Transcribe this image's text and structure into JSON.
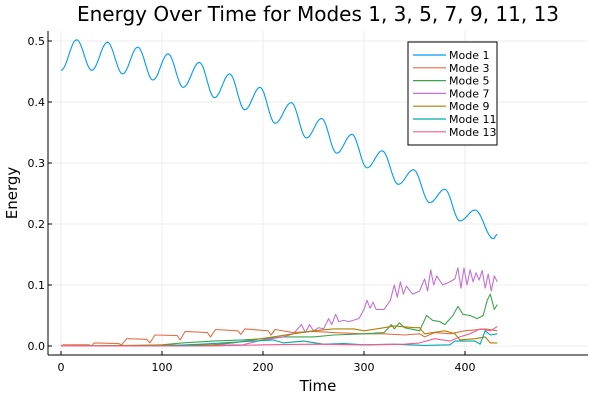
{
  "chart_data": {
    "type": "line",
    "title": "Energy Over Time for Modes 1, 3, 5, 7, 9, 11, 13",
    "xlabel": "Time",
    "ylabel": "Energy",
    "xlim": [
      -12,
      447
    ],
    "ylim": [
      -0.015,
      0.516
    ],
    "xticks": [
      0,
      100,
      200,
      300,
      400
    ],
    "xtick_labels": [
      "0",
      "100",
      "200",
      "300",
      "400"
    ],
    "yticks": [
      0.0,
      0.1,
      0.2,
      0.3,
      0.4,
      0.5
    ],
    "ytick_labels": [
      "0.0",
      "0.1",
      "0.2",
      "0.3",
      "0.4",
      "0.5"
    ],
    "grid": true,
    "legend_position": "top-right",
    "series": [
      {
        "name": "Mode 1",
        "color": "#009af9",
        "interpolation": "smooth-extrema",
        "x": [
          0,
          15.5,
          30.5,
          46,
          61,
          76,
          91,
          106,
          121,
          137,
          152,
          167,
          182,
          197,
          212,
          228,
          243,
          258,
          273,
          288,
          303,
          318,
          334,
          349,
          365,
          380,
          395,
          410,
          428,
          432
        ],
        "y": [
          0.452,
          0.502,
          0.452,
          0.498,
          0.446,
          0.49,
          0.436,
          0.479,
          0.424,
          0.465,
          0.407,
          0.446,
          0.387,
          0.424,
          0.365,
          0.399,
          0.341,
          0.373,
          0.316,
          0.347,
          0.292,
          0.32,
          0.265,
          0.289,
          0.235,
          0.257,
          0.205,
          0.223,
          0.176,
          0.183
        ]
      },
      {
        "name": "Mode 3",
        "color": "#e26f46",
        "x": [
          0,
          2,
          28,
          30,
          33,
          57,
          60,
          65,
          85,
          88,
          93,
          115,
          118,
          123,
          145,
          148,
          153,
          175,
          178,
          182,
          205,
          208,
          212,
          230,
          250,
          270,
          300,
          320,
          340,
          355,
          360,
          370,
          385,
          400,
          420,
          432
        ],
        "y": [
          0.0,
          0.002,
          0.002,
          0.0,
          0.005,
          0.004,
          0.002,
          0.012,
          0.011,
          0.005,
          0.018,
          0.017,
          0.01,
          0.024,
          0.022,
          0.015,
          0.027,
          0.025,
          0.019,
          0.028,
          0.025,
          0.018,
          0.027,
          0.022,
          0.024,
          0.022,
          0.02,
          0.02,
          0.018,
          0.02,
          0.015,
          0.022,
          0.02,
          0.025,
          0.028,
          0.025
        ]
      },
      {
        "name": "Mode 5",
        "color": "#3da44d",
        "x": [
          0,
          60,
          100,
          120,
          150,
          180,
          200,
          220,
          250,
          270,
          300,
          320,
          327,
          330,
          335,
          340,
          355,
          362,
          368,
          375,
          380,
          388,
          393,
          398,
          405,
          412,
          418,
          422,
          425,
          429,
          432
        ],
        "y": [
          0.0,
          0.0,
          0.002,
          0.005,
          0.008,
          0.01,
          0.012,
          0.015,
          0.015,
          0.018,
          0.02,
          0.022,
          0.035,
          0.028,
          0.038,
          0.03,
          0.025,
          0.05,
          0.042,
          0.04,
          0.035,
          0.05,
          0.065,
          0.052,
          0.05,
          0.045,
          0.05,
          0.075,
          0.085,
          0.06,
          0.068
        ]
      },
      {
        "name": "Mode 7",
        "color": "#c271d2",
        "x": [
          0,
          180,
          200,
          220,
          230,
          238,
          242,
          246,
          250,
          255,
          260,
          265,
          268,
          272,
          275,
          280,
          285,
          295,
          300,
          303,
          306,
          309,
          312,
          320,
          326,
          330,
          333,
          336,
          339,
          342,
          348,
          355,
          360,
          363,
          366,
          369,
          372,
          378,
          385,
          390,
          393,
          396,
          399,
          402,
          405,
          408,
          411,
          414,
          417,
          420,
          423,
          426,
          429,
          432
        ],
        "y": [
          0.0,
          0.002,
          0.01,
          0.015,
          0.02,
          0.035,
          0.022,
          0.035,
          0.025,
          0.03,
          0.028,
          0.045,
          0.035,
          0.052,
          0.04,
          0.042,
          0.04,
          0.045,
          0.06,
          0.075,
          0.062,
          0.072,
          0.06,
          0.06,
          0.075,
          0.1,
          0.08,
          0.105,
          0.085,
          0.098,
          0.085,
          0.09,
          0.11,
          0.09,
          0.125,
          0.1,
          0.115,
          0.1,
          0.105,
          0.11,
          0.128,
          0.095,
          0.128,
          0.1,
          0.125,
          0.105,
          0.12,
          0.108,
          0.124,
          0.095,
          0.118,
          0.09,
          0.115,
          0.105
        ]
      },
      {
        "name": "Mode 9",
        "color": "#ad8000",
        "x": [
          0,
          150,
          170,
          190,
          210,
          230,
          250,
          270,
          290,
          300,
          320,
          330,
          350,
          355,
          360,
          380,
          390,
          395,
          410,
          420,
          425,
          432
        ],
        "y": [
          0.0,
          0.002,
          0.005,
          0.01,
          0.015,
          0.02,
          0.025,
          0.028,
          0.028,
          0.025,
          0.03,
          0.033,
          0.03,
          0.03,
          0.02,
          0.025,
          0.02,
          0.01,
          0.012,
          0.015,
          0.005,
          0.005
        ]
      },
      {
        "name": "Mode 11",
        "color": "#00a9ad",
        "x": [
          0,
          100,
          150,
          190,
          210,
          220,
          240,
          260,
          280,
          300,
          330,
          360,
          385,
          390,
          410,
          415,
          420,
          425,
          432
        ],
        "y": [
          0.0,
          0.0,
          0.004,
          0.008,
          0.01,
          0.005,
          0.008,
          0.003,
          0.004,
          0.002,
          0.003,
          0.001,
          0.002,
          0.008,
          0.008,
          0.003,
          0.025,
          0.018,
          0.02
        ]
      },
      {
        "name": "Mode 13",
        "color": "#ed5d92",
        "x": [
          0,
          150,
          200,
          250,
          300,
          340,
          355,
          370,
          385,
          395,
          405,
          415,
          425,
          432
        ],
        "y": [
          0.0,
          0.0,
          0.002,
          0.003,
          0.002,
          0.003,
          0.005,
          0.012,
          0.008,
          0.015,
          0.02,
          0.028,
          0.025,
          0.032
        ]
      }
    ]
  }
}
